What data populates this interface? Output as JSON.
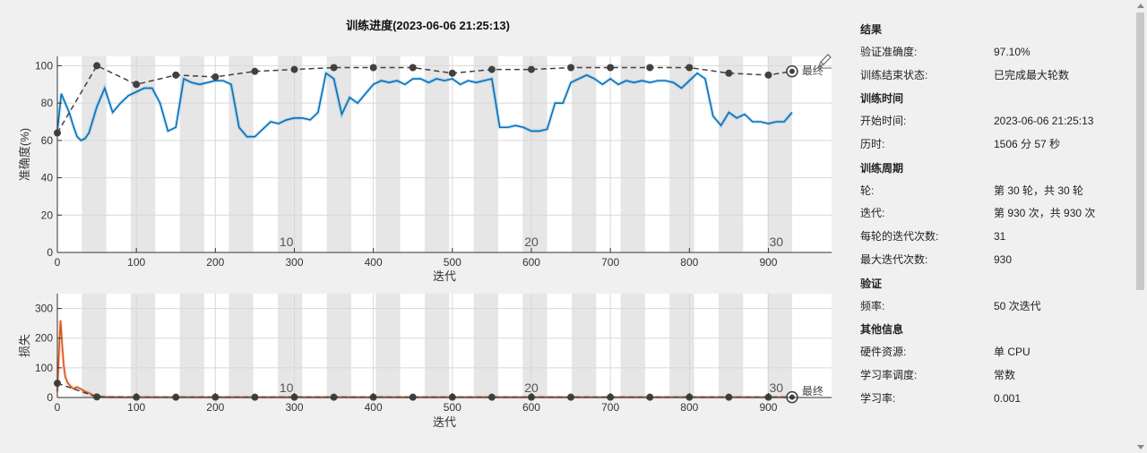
{
  "chart_data": [
    {
      "type": "line",
      "title": "训练进度(2023-06-06 21:25:13)",
      "xlabel": "迭代",
      "ylabel": "准确度(%)",
      "xlim": [
        0,
        980
      ],
      "ylim": [
        0,
        105
      ],
      "xticks": [
        0,
        100,
        200,
        300,
        400,
        500,
        600,
        700,
        800,
        900
      ],
      "yticks": [
        0,
        20,
        40,
        60,
        80,
        100
      ],
      "epoch_labels": [
        {
          "x": 290,
          "label": "10"
        },
        {
          "x": 600,
          "label": "20"
        },
        {
          "x": 910,
          "label": "30"
        }
      ],
      "final_label": "最终",
      "grid": true,
      "series": [
        {
          "kind": "smoothed",
          "color": "#0072bd",
          "x": [
            0,
            5,
            10,
            15,
            20,
            25,
            30,
            35,
            40,
            50,
            60,
            70,
            80,
            90,
            100,
            110,
            120,
            130,
            140,
            150,
            160,
            170,
            180,
            190,
            200,
            210,
            220,
            230,
            240,
            250,
            260,
            270,
            280,
            290,
            300,
            310,
            320,
            330,
            340,
            350,
            360,
            370,
            380,
            390,
            400,
            410,
            420,
            430,
            440,
            450,
            460,
            470,
            480,
            490,
            500,
            510,
            520,
            530,
            540,
            550,
            560,
            570,
            580,
            590,
            600,
            610,
            620,
            630,
            640,
            650,
            660,
            670,
            680,
            690,
            700,
            710,
            720,
            730,
            740,
            750,
            760,
            770,
            780,
            790,
            800,
            810,
            820,
            830,
            840,
            850,
            860,
            870,
            880,
            890,
            900,
            910,
            920,
            930
          ],
          "values": [
            65,
            85,
            80,
            75,
            68,
            62,
            60,
            61,
            64,
            78,
            88,
            75,
            80,
            84,
            86,
            88,
            88,
            80,
            65,
            67,
            93,
            91,
            90,
            91,
            92,
            92,
            90,
            67,
            62,
            62,
            66,
            70,
            69,
            71,
            72,
            72,
            71,
            75,
            96,
            93,
            74,
            83,
            80,
            85,
            90,
            92,
            91,
            92,
            90,
            93,
            93,
            91,
            93,
            92,
            93,
            90,
            92,
            91,
            92,
            93,
            67,
            67,
            68,
            67,
            65,
            65,
            66,
            80,
            80,
            91,
            93,
            95,
            93,
            90,
            93,
            90,
            92,
            91,
            92,
            91,
            92,
            92,
            91,
            88,
            92,
            96,
            93,
            73,
            68,
            75,
            72,
            74,
            70,
            70,
            69,
            70,
            70,
            75
          ]
        },
        {
          "kind": "validation",
          "color": "#404040",
          "x": [
            0,
            50,
            100,
            150,
            200,
            250,
            300,
            350,
            400,
            450,
            500,
            550,
            600,
            650,
            700,
            750,
            800,
            850,
            900,
            930
          ],
          "values": [
            64,
            100,
            90,
            95,
            94,
            97,
            98,
            99,
            99,
            99,
            96,
            98,
            98,
            99,
            99,
            99,
            99,
            96,
            95,
            97
          ]
        }
      ]
    },
    {
      "type": "line",
      "xlabel": "迭代",
      "ylabel": "损失",
      "xlim": [
        0,
        980
      ],
      "ylim": [
        0,
        350
      ],
      "xticks": [
        0,
        100,
        200,
        300,
        400,
        500,
        600,
        700,
        800,
        900
      ],
      "yticks": [
        0,
        100,
        200,
        300
      ],
      "epoch_labels": [
        {
          "x": 290,
          "label": "10"
        },
        {
          "x": 600,
          "label": "20"
        },
        {
          "x": 910,
          "label": "30"
        }
      ],
      "final_label": "最终",
      "grid": true,
      "series": [
        {
          "kind": "smoothed",
          "color": "#d95319",
          "x": [
            0,
            2,
            4,
            6,
            8,
            10,
            13,
            16,
            20,
            25,
            30,
            35,
            40,
            45,
            50,
            60,
            80,
            100,
            930
          ],
          "values": [
            20,
            150,
            260,
            180,
            110,
            70,
            50,
            40,
            30,
            35,
            28,
            20,
            15,
            8,
            4,
            2,
            1,
            1,
            1
          ]
        },
        {
          "kind": "validation",
          "color": "#404040",
          "x": [
            0,
            50,
            100,
            150,
            200,
            250,
            300,
            350,
            400,
            450,
            500,
            550,
            600,
            650,
            700,
            750,
            800,
            850,
            900,
            930
          ],
          "values": [
            48,
            2,
            1,
            1,
            1,
            1,
            1,
            1,
            1,
            1,
            1,
            1,
            1,
            1,
            1,
            1,
            1,
            1,
            1,
            1
          ]
        }
      ]
    }
  ],
  "info": {
    "sections": [
      {
        "title": "结果",
        "rows": [
          {
            "k": "验证准确度:",
            "v": "97.10%"
          },
          {
            "k": "训练结束状态:",
            "v": "已完成最大轮数"
          }
        ]
      },
      {
        "title": "训练时间",
        "rows": [
          {
            "k": "开始时间:",
            "v": "2023-06-06 21:25:13"
          },
          {
            "k": "历时:",
            "v": "1506 分 57 秒"
          }
        ]
      },
      {
        "title": "训练周期",
        "rows": [
          {
            "k": "轮:",
            "v": "第 30 轮，共 30 轮"
          },
          {
            "k": "迭代:",
            "v": "第 930 次，共 930 次"
          },
          {
            "k": "每轮的迭代次数:",
            "v": "31"
          },
          {
            "k": "最大迭代次数:",
            "v": "930"
          }
        ]
      },
      {
        "title": "验证",
        "rows": [
          {
            "k": "频率:",
            "v": "50 次迭代"
          }
        ]
      },
      {
        "title": "其他信息",
        "rows": [
          {
            "k": "硬件资源:",
            "v": "单 CPU"
          },
          {
            "k": "学习率调度:",
            "v": "常数"
          },
          {
            "k": "学习率:",
            "v": "0.001"
          }
        ]
      }
    ]
  }
}
